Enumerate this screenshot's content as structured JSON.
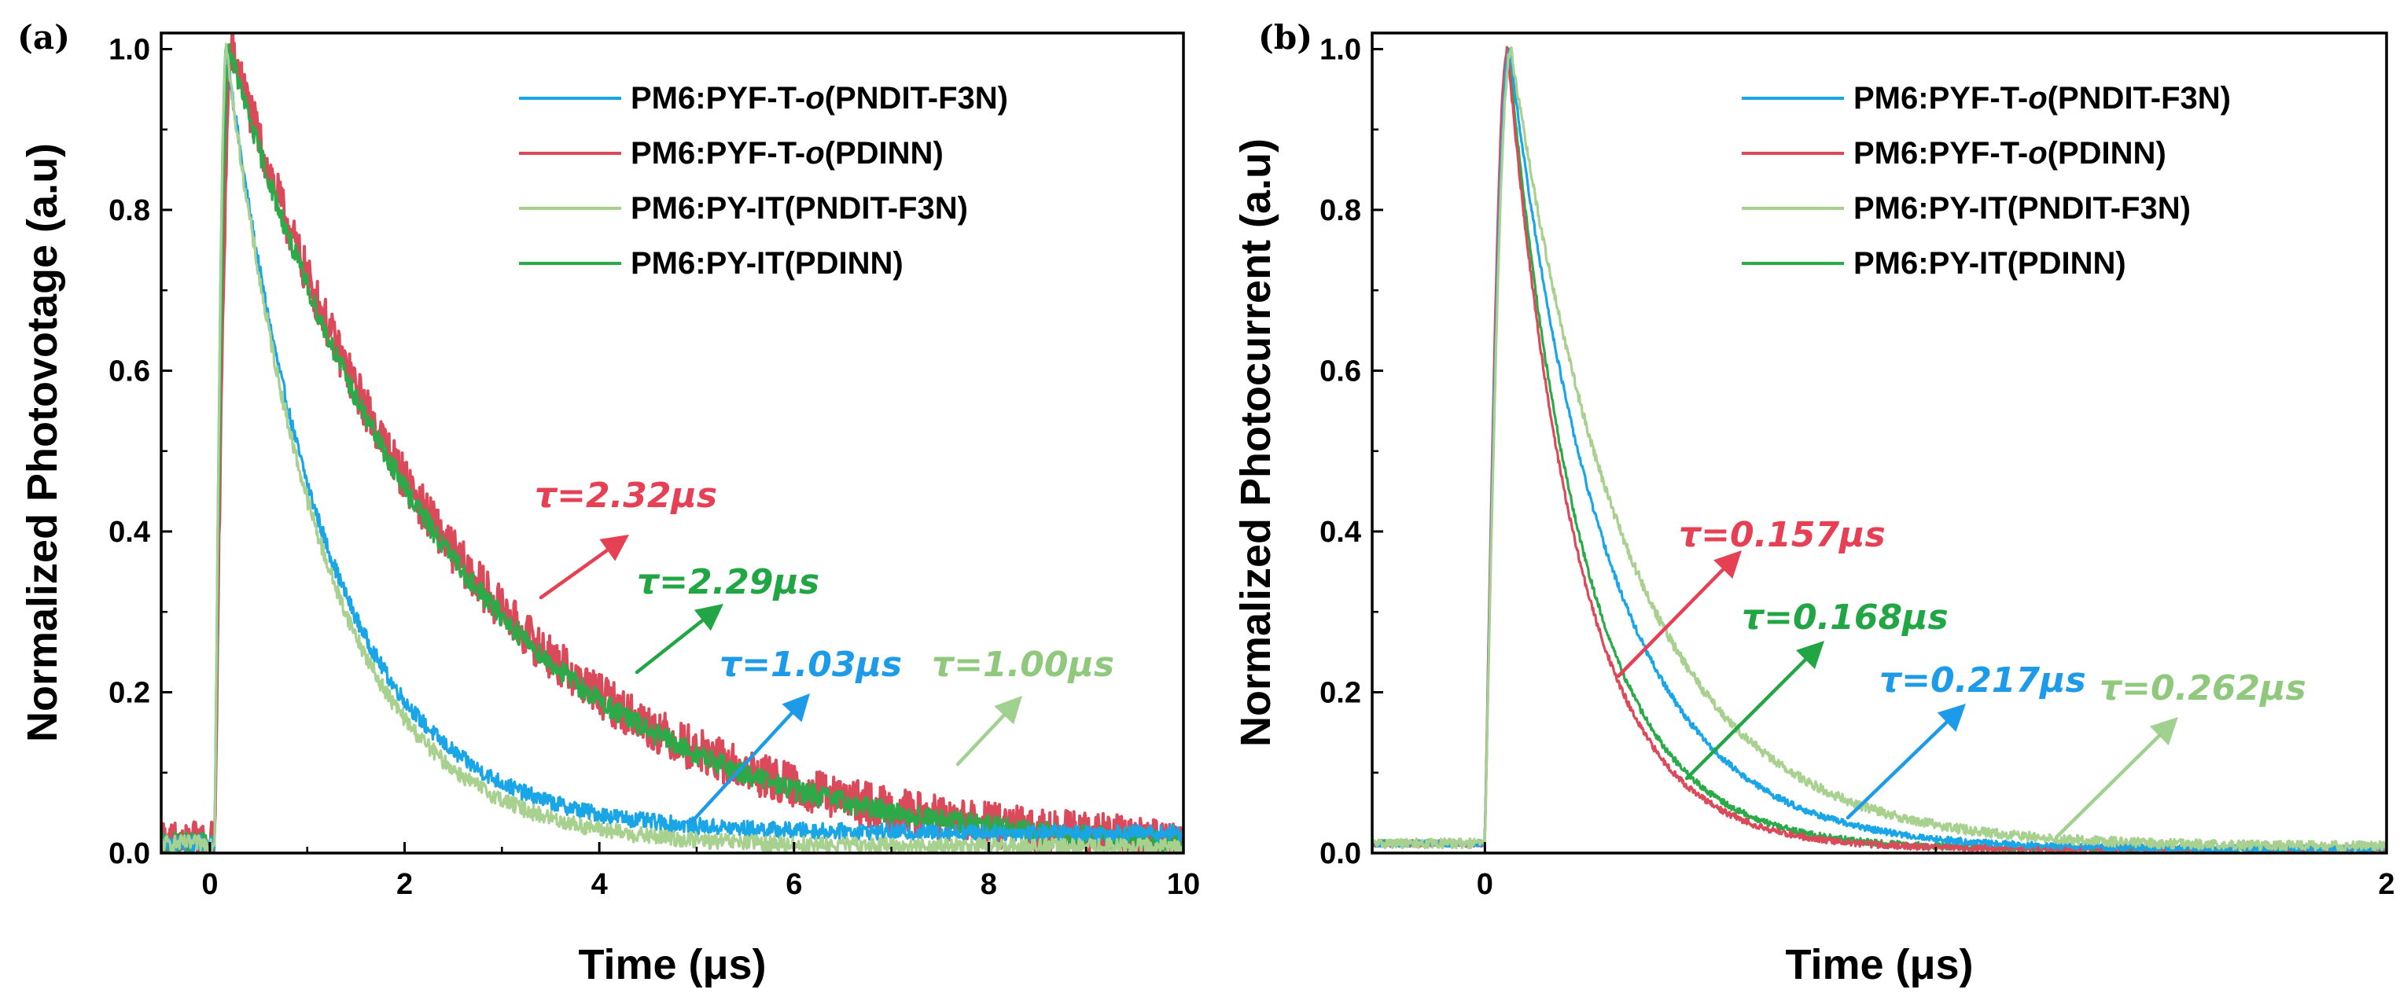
{
  "figure": {
    "panel_labels": [
      "(a)",
      "(b)"
    ]
  },
  "chart_data": [
    {
      "type": "line",
      "panel": "(a)",
      "xlabel": "Time (μs)",
      "ylabel": "Normalized Photovotage (a.u)",
      "xlim": [
        -0.5,
        10
      ],
      "ylim": [
        0,
        1.02
      ],
      "xticks": [
        0,
        2,
        4,
        6,
        8,
        10
      ],
      "xtick_labels": [
        "0",
        "2",
        "4",
        "6",
        "8",
        "10"
      ],
      "yticks": [
        0.0,
        0.2,
        0.4,
        0.6,
        0.8,
        1.0
      ],
      "ytick_labels": [
        "0.0",
        "0.2",
        "0.4",
        "0.6",
        "0.8",
        "1.0"
      ],
      "legend_position": "top-right",
      "series": [
        {
          "name": "PM6:PYF-T-",
          "name_italic": "o",
          "name_tail": "(PNDIT-F3N)",
          "color": "#1aa6e6",
          "t0": 0.05,
          "rise": 0.12,
          "tau": 1.03,
          "floor": 0.025,
          "noise": 0.01,
          "annotation": "τ=1.03μs",
          "annotation_color": "#1e9be8"
        },
        {
          "name": "PM6:PYF-T-",
          "name_italic": "o",
          "name_tail": "(PDINN)",
          "color": "#db4a5a",
          "t0": 0.05,
          "rise": 0.18,
          "tau": 2.32,
          "floor": 0.0,
          "noise": 0.028,
          "annotation": "τ=2.32μs",
          "annotation_color": "#e64055"
        },
        {
          "name": "PM6:PY-IT(PNDIT-F3N)",
          "color": "#a8d08f",
          "t0": 0.05,
          "rise": 0.12,
          "tau": 1.0,
          "floor": 0.008,
          "noise": 0.01,
          "annotation": "τ=1.00μs",
          "annotation_color": "#90c97e"
        },
        {
          "name": "PM6:PY-IT(PDINN)",
          "color": "#2caa4a",
          "t0": 0.05,
          "rise": 0.15,
          "tau": 2.29,
          "floor": 0.0,
          "noise": 0.014,
          "annotation": "τ=2.29μs",
          "annotation_color": "#22a645"
        }
      ]
    },
    {
      "type": "line",
      "panel": "(b)",
      "xlabel": "Time (μs)",
      "ylabel": "Normalized Photocurrent (a.u)",
      "xlim": [
        -0.25,
        2
      ],
      "ylim": [
        0,
        1.02
      ],
      "xticks": [
        0,
        2
      ],
      "xtick_labels": [
        "0",
        "2"
      ],
      "yticks": [
        0.0,
        0.2,
        0.4,
        0.6,
        0.8,
        1.0
      ],
      "ytick_labels": [
        "0.0",
        "0.2",
        "0.4",
        "0.6",
        "0.8",
        "1.0"
      ],
      "legend_position": "top-right",
      "series": [
        {
          "name": "PM6:PYF-T-",
          "name_italic": "o",
          "name_tail": "(PNDIT-F3N)",
          "color": "#1aa6e6",
          "t0": 0.0,
          "rise": 0.055,
          "tau": 0.217,
          "floor": 0.005,
          "noise": 0.004,
          "annotation": "τ=0.217μs",
          "annotation_color": "#1e9be8"
        },
        {
          "name": "PM6:PYF-T-",
          "name_italic": "o",
          "name_tail": "(PDINN)",
          "color": "#db4a5a",
          "t0": 0.0,
          "rise": 0.05,
          "tau": 0.157,
          "floor": 0.005,
          "noise": 0.004,
          "annotation": "τ=0.157μs",
          "annotation_color": "#e64055"
        },
        {
          "name": "PM6:PY-IT(PNDIT-F3N)",
          "color": "#a8d08f",
          "t0": 0.0,
          "rise": 0.058,
          "tau": 0.262,
          "floor": 0.008,
          "noise": 0.006,
          "annotation": "τ=0.262μs",
          "annotation_color": "#90c97e"
        },
        {
          "name": "PM6:PY-IT(PDINN)",
          "color": "#2caa4a",
          "t0": 0.0,
          "rise": 0.052,
          "tau": 0.168,
          "floor": 0.005,
          "noise": 0.004,
          "annotation": "τ=0.168μs",
          "annotation_color": "#22a645"
        }
      ]
    }
  ]
}
